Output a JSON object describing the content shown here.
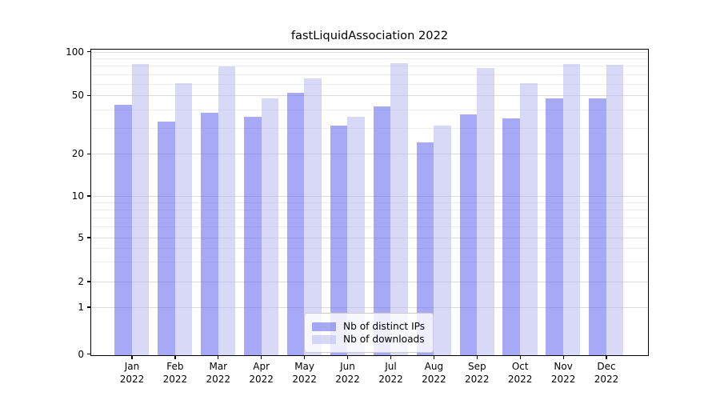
{
  "title": "fastLiquidAssociation 2022",
  "chart_data": {
    "type": "bar",
    "title": "fastLiquidAssociation 2022",
    "categories": [
      "Jan",
      "Feb",
      "Mar",
      "Apr",
      "May",
      "Jun",
      "Jul",
      "Aug",
      "Sep",
      "Oct",
      "Nov",
      "Dec"
    ],
    "x_tick_second_line": "2022",
    "series": [
      {
        "name": "Nb of distinct IPs",
        "color": "rgba(81,84,238,0.5)",
        "values": [
          43,
          33,
          38,
          36,
          52,
          31,
          42,
          24,
          37,
          35,
          48,
          48
        ]
      },
      {
        "name": "Nb of downloads",
        "color": "rgba(177,180,240,0.5)",
        "values": [
          83,
          61,
          79,
          48,
          66,
          36,
          84,
          31,
          77,
          61,
          83,
          81
        ]
      }
    ],
    "yscale": "log-with-zero",
    "ylim": [
      0,
      100
    ],
    "yticks": [
      0,
      1,
      2,
      5,
      10,
      20,
      50,
      100
    ],
    "minor_gridlines": [
      3,
      4,
      6,
      7,
      8,
      9,
      30,
      40,
      60,
      70,
      80,
      90
    ],
    "grid": "horizontal",
    "legend": {
      "position": "lower-center",
      "items": [
        "Nb of distinct IPs",
        "Nb of downloads"
      ]
    }
  },
  "colors": {
    "grid_major": "#dcdcdc",
    "grid_minor": "#ededed",
    "spine": "#000000",
    "background": "#ffffff",
    "legend_border": "#cccccc"
  }
}
